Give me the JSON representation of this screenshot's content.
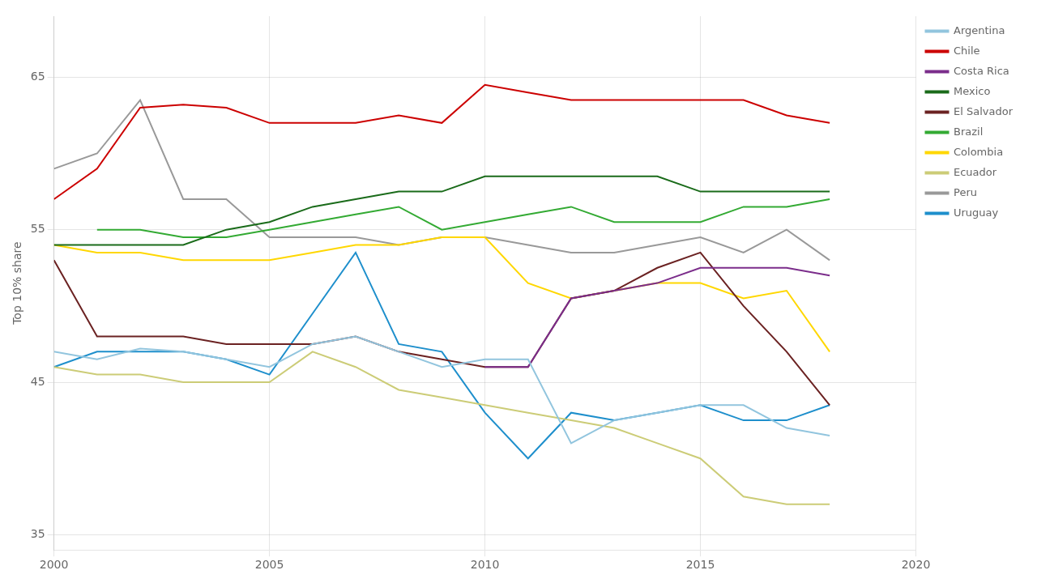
{
  "chart_data": {
    "type": "line",
    "y_label": "Top 10% share",
    "xlim": [
      2000,
      2020
    ],
    "ylim": [
      34,
      69
    ],
    "xticks": [
      2000,
      2005,
      2010,
      2015,
      2020
    ],
    "yticks": [
      35,
      45,
      55,
      65
    ],
    "grid": true,
    "legend": "right",
    "series": [
      {
        "name": "Argentina",
        "color": "#92C5DE",
        "x": [
          2000,
          2001,
          2002,
          2003,
          2004,
          2005,
          2006,
          2007,
          2008,
          2009,
          2010,
          2011,
          2012,
          2013,
          2014,
          2015,
          2016,
          2017,
          2018
        ],
        "values": [
          47.0,
          46.5,
          47.2,
          47.0,
          46.5,
          46.0,
          47.5,
          48.0,
          47.0,
          46.0,
          46.5,
          46.5,
          41.0,
          42.5,
          43.0,
          43.5,
          43.5,
          42.0,
          41.5
        ]
      },
      {
        "name": "Chile",
        "color": "#CC0000",
        "x": [
          2000,
          2001,
          2002,
          2003,
          2004,
          2005,
          2006,
          2007,
          2008,
          2009,
          2010,
          2011,
          2012,
          2013,
          2014,
          2015,
          2016,
          2017,
          2018
        ],
        "values": [
          57.0,
          59.0,
          63.0,
          63.2,
          63.0,
          62.0,
          62.0,
          62.0,
          62.5,
          62.0,
          64.5,
          64.0,
          63.5,
          63.5,
          63.5,
          63.5,
          63.5,
          62.5,
          62.0
        ]
      },
      {
        "name": "Costa Rica",
        "color": "#7B2D8B",
        "x": [
          2010,
          2011,
          2012,
          2013,
          2014,
          2015,
          2016,
          2017,
          2018
        ],
        "values": [
          46.0,
          46.0,
          50.5,
          51.0,
          51.5,
          52.5,
          52.5,
          52.5,
          52.0
        ]
      },
      {
        "name": "Mexico",
        "color": "#1A6B1A",
        "x": [
          2000,
          2001,
          2002,
          2003,
          2004,
          2005,
          2006,
          2007,
          2008,
          2009,
          2010,
          2011,
          2012,
          2013,
          2014,
          2015,
          2016,
          2017,
          2018
        ],
        "values": [
          54.0,
          54.0,
          54.0,
          54.0,
          55.0,
          55.5,
          56.5,
          57.0,
          57.5,
          57.5,
          58.5,
          58.5,
          58.5,
          58.5,
          58.5,
          57.5,
          57.5,
          57.5,
          57.5
        ]
      },
      {
        "name": "El Salvador",
        "color": "#6B2222",
        "x": [
          2000,
          2001,
          2002,
          2003,
          2004,
          2005,
          2006,
          2007,
          2008,
          2009,
          2010,
          2011,
          2012,
          2013,
          2014,
          2015,
          2016,
          2017,
          2018
        ],
        "values": [
          53.0,
          48.0,
          48.0,
          48.0,
          47.5,
          47.5,
          47.5,
          48.0,
          47.0,
          46.5,
          46.0,
          46.0,
          50.5,
          51.0,
          52.5,
          53.5,
          50.0,
          47.0,
          43.5
        ]
      },
      {
        "name": "Brazil",
        "color": "#33AA33",
        "x": [
          2001,
          2002,
          2003,
          2004,
          2005,
          2006,
          2007,
          2008,
          2009,
          2010,
          2011,
          2012,
          2013,
          2014,
          2015,
          2016,
          2017,
          2018
        ],
        "values": [
          55.0,
          55.0,
          54.5,
          54.5,
          55.0,
          55.5,
          56.0,
          56.5,
          55.0,
          55.5,
          56.0,
          56.5,
          55.5,
          55.5,
          55.5,
          56.5,
          56.5,
          57.0
        ]
      },
      {
        "name": "Colombia",
        "color": "#FFD700",
        "x": [
          2000,
          2001,
          2002,
          2003,
          2004,
          2005,
          2006,
          2007,
          2008,
          2009,
          2010,
          2011,
          2012,
          2013,
          2014,
          2015,
          2016,
          2017,
          2018
        ],
        "values": [
          54.0,
          53.5,
          53.5,
          53.0,
          53.0,
          53.0,
          53.5,
          54.0,
          54.0,
          54.5,
          54.5,
          51.5,
          50.5,
          51.0,
          51.5,
          51.5,
          50.5,
          51.0,
          47.0
        ]
      },
      {
        "name": "Ecuador",
        "color": "#CCCC77",
        "x": [
          2000,
          2001,
          2002,
          2003,
          2004,
          2005,
          2006,
          2007,
          2008,
          2009,
          2010,
          2011,
          2012,
          2013,
          2014,
          2015,
          2016,
          2017,
          2018
        ],
        "values": [
          46.0,
          45.5,
          45.5,
          45.0,
          45.0,
          45.0,
          47.0,
          46.0,
          44.5,
          44.0,
          43.5,
          43.0,
          42.5,
          42.0,
          41.0,
          40.0,
          37.5,
          37.0,
          37.0
        ]
      },
      {
        "name": "Peru",
        "color": "#999999",
        "x": [
          2000,
          2001,
          2002,
          2003,
          2004,
          2005,
          2006,
          2007,
          2008,
          2009,
          2010,
          2011,
          2012,
          2013,
          2014,
          2015,
          2016,
          2017,
          2018
        ],
        "values": [
          59.0,
          60.0,
          63.5,
          57.0,
          57.0,
          54.5,
          54.5,
          54.5,
          54.0,
          54.5,
          54.5,
          54.0,
          53.5,
          53.5,
          54.0,
          54.5,
          53.5,
          55.0,
          53.0
        ]
      },
      {
        "name": "Uruguay",
        "color": "#1E8FCC",
        "x": [
          2000,
          2001,
          2002,
          2003,
          2004,
          2005,
          2006,
          2007,
          2008,
          2009,
          2010,
          2011,
          2012,
          2013,
          2014,
          2015,
          2016,
          2017,
          2018
        ],
        "values": [
          46.0,
          47.0,
          47.0,
          47.0,
          46.5,
          45.5,
          49.5,
          53.5,
          47.5,
          47.0,
          43.0,
          40.0,
          43.0,
          42.5,
          43.0,
          43.5,
          42.5,
          42.5,
          43.5
        ]
      }
    ]
  }
}
